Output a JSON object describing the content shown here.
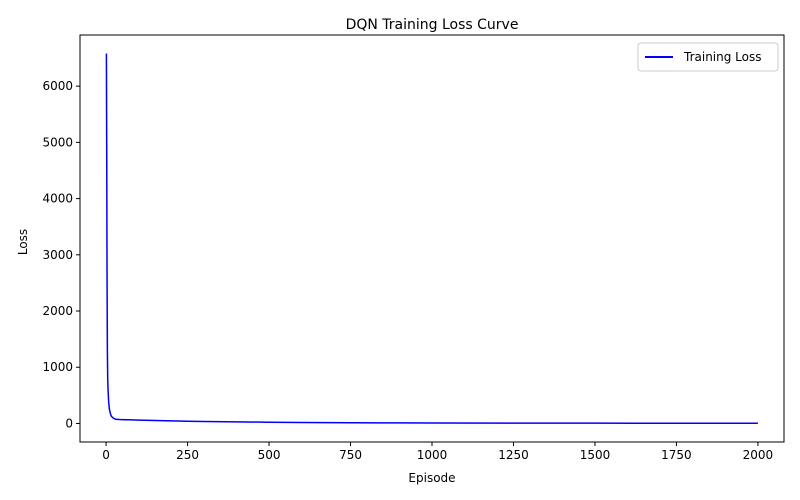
{
  "chart_data": {
    "type": "line",
    "title": "DQN Training Loss Curve",
    "xlabel": "Episode",
    "ylabel": "Loss",
    "xlim": [
      -80,
      2080
    ],
    "ylim": [
      -330,
      6910
    ],
    "xticks": [
      0,
      250,
      500,
      750,
      1000,
      1250,
      1500,
      1750,
      2000
    ],
    "yticks": [
      0,
      1000,
      2000,
      3000,
      4000,
      5000,
      6000
    ],
    "grid": false,
    "legend_position": "top-right",
    "series": [
      {
        "name": "Training Loss",
        "color": "#0000ff",
        "x": [
          1,
          2,
          3,
          4,
          5,
          6,
          8,
          10,
          13,
          16,
          20,
          25,
          30,
          40,
          50,
          60,
          70,
          80,
          100,
          120,
          150,
          200,
          250,
          300,
          400,
          500,
          600,
          750,
          900,
          1000,
          1250,
          1500,
          1750,
          2000
        ],
        "y": [
          6580,
          4800,
          2600,
          1300,
          800,
          600,
          380,
          260,
          180,
          130,
          105,
          85,
          75,
          70,
          68,
          66,
          65,
          64,
          60,
          57,
          52,
          46,
          40,
          35,
          28,
          22,
          18,
          13,
          10,
          8,
          6,
          5,
          4,
          3
        ]
      }
    ]
  }
}
